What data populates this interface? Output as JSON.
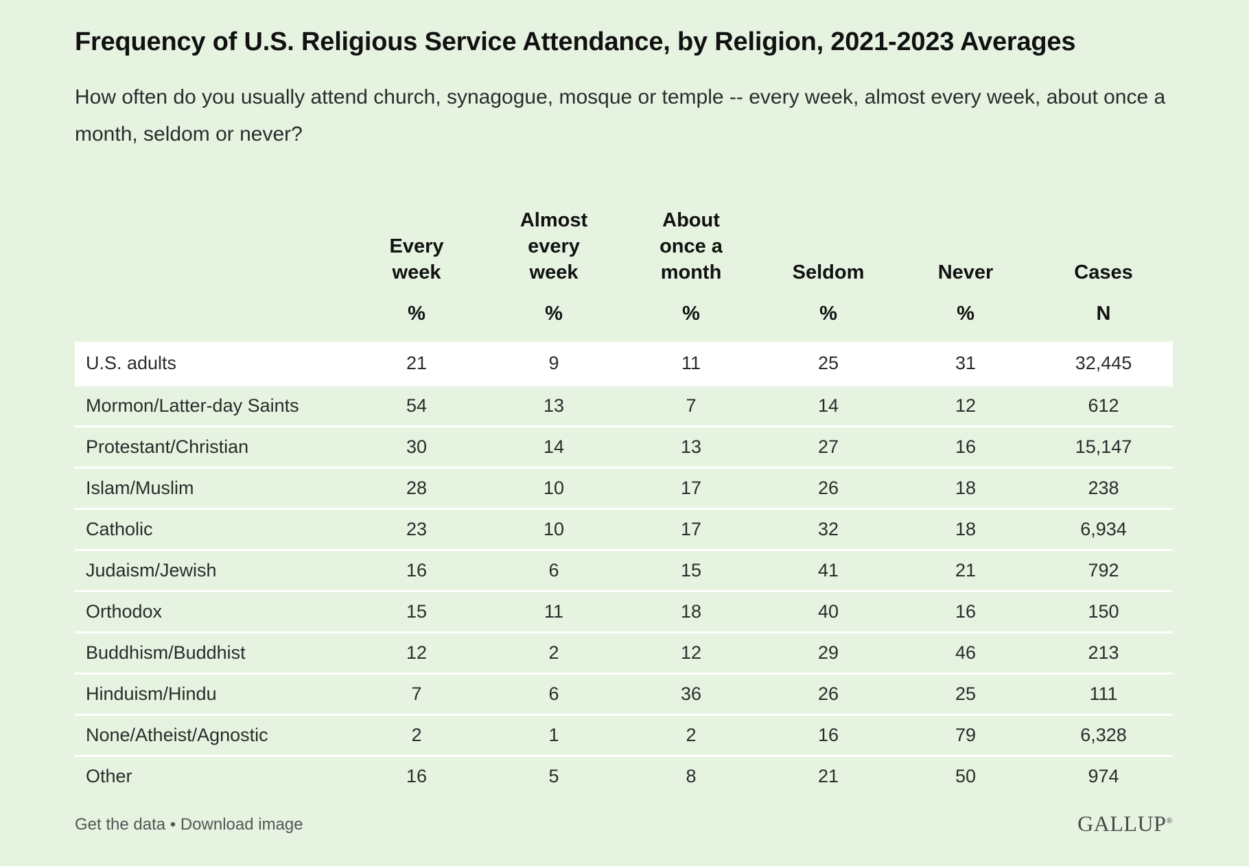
{
  "chart_data": {
    "type": "table",
    "title": "Frequency of U.S. Religious Service Attendance, by Religion, 2021-2023 Averages",
    "subtitle": "How often do you usually attend church, synagogue, mosque or temple -- every week, almost every week, about once a month, seldom or never?",
    "columns": [
      {
        "header_lines": [
          "Every",
          "week"
        ],
        "unit": "%"
      },
      {
        "header_lines": [
          "Almost",
          "every",
          "week"
        ],
        "unit": "%"
      },
      {
        "header_lines": [
          "About",
          "once a",
          "month"
        ],
        "unit": "%"
      },
      {
        "header_lines": [
          "Seldom"
        ],
        "unit": "%"
      },
      {
        "header_lines": [
          "Never"
        ],
        "unit": "%"
      },
      {
        "header_lines": [
          "Cases"
        ],
        "unit": "N"
      }
    ],
    "rows": [
      {
        "label": "U.S. adults",
        "values": [
          "21",
          "9",
          "11",
          "25",
          "31",
          "32,445"
        ],
        "highlight": true
      },
      {
        "label": "Mormon/Latter-day Saints",
        "values": [
          "54",
          "13",
          "7",
          "14",
          "12",
          "612"
        ]
      },
      {
        "label": "Protestant/Christian",
        "values": [
          "30",
          "14",
          "13",
          "27",
          "16",
          "15,147"
        ]
      },
      {
        "label": "Islam/Muslim",
        "values": [
          "28",
          "10",
          "17",
          "26",
          "18",
          "238"
        ]
      },
      {
        "label": "Catholic",
        "values": [
          "23",
          "10",
          "17",
          "32",
          "18",
          "6,934"
        ]
      },
      {
        "label": "Judaism/Jewish",
        "values": [
          "16",
          "6",
          "15",
          "41",
          "21",
          "792"
        ]
      },
      {
        "label": "Orthodox",
        "values": [
          "15",
          "11",
          "18",
          "40",
          "16",
          "150"
        ]
      },
      {
        "label": "Buddhism/Buddhist",
        "values": [
          "12",
          "2",
          "12",
          "29",
          "46",
          "213"
        ]
      },
      {
        "label": "Hinduism/Hindu",
        "values": [
          "7",
          "6",
          "36",
          "26",
          "25",
          "111"
        ]
      },
      {
        "label": "None/Atheist/Agnostic",
        "values": [
          "2",
          "1",
          "2",
          "16",
          "79",
          "6,328"
        ]
      },
      {
        "label": "Other",
        "values": [
          "16",
          "5",
          "8",
          "21",
          "50",
          "974"
        ]
      }
    ]
  },
  "footer": {
    "get_data": "Get the data",
    "separator": " • ",
    "download": "Download image"
  },
  "logo": {
    "text": "GALLUP",
    "mark": "®"
  },
  "colors": {
    "background": "#e5f3e0",
    "highlight_row": "#ffffff",
    "row_divider": "#ffffff"
  }
}
